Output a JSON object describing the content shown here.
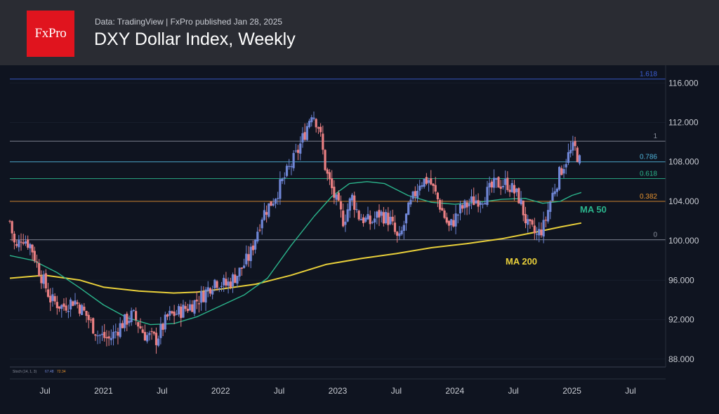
{
  "header": {
    "logo_text": "FxPro",
    "source_line": "Data: TradingView  |  FxPro published Jan 28, 2025",
    "title": "DXY Dollar Index, Weekly"
  },
  "colors": {
    "up": "#6f86d6",
    "down": "#e97f82",
    "ma50": "#2bb58c",
    "ma200": "#e8cf3a",
    "fib_1618": "#3d5fd6",
    "fib_0786": "#4fb3d9",
    "fib_0618": "#2bb58c",
    "fib_0382": "#e8932e",
    "fib_neutral": "#8a8f9c"
  },
  "chart_data": {
    "type": "candlestick",
    "title": "DXY Dollar Index, Weekly",
    "x_ticks": [
      "Jul",
      "2021",
      "Jul",
      "2022",
      "Jul",
      "2023",
      "Jul",
      "2024",
      "Jul",
      "2025",
      "Jul"
    ],
    "x_tick_times": [
      2020.5,
      2021.0,
      2021.5,
      2022.0,
      2022.5,
      2023.0,
      2023.5,
      2024.0,
      2024.5,
      2025.0,
      2025.5
    ],
    "xlim": [
      2020.2,
      2025.8
    ],
    "y_ticks": [
      "116.000",
      "112.000",
      "108.000",
      "104.000",
      "100.000",
      "96.000",
      "92.000",
      "88.000"
    ],
    "y_tick_values": [
      116,
      112,
      108,
      104,
      100,
      96,
      92,
      88
    ],
    "ylim": [
      87.2,
      117.8
    ],
    "fib_levels": [
      {
        "label": "1.618",
        "value": 116.4,
        "color_key": "fib_1618"
      },
      {
        "label": "1",
        "value": 110.1,
        "color_key": "fib_neutral"
      },
      {
        "label": "0.786",
        "value": 108.0,
        "color_key": "fib_0786"
      },
      {
        "label": "0.618",
        "value": 106.3,
        "color_key": "fib_0618"
      },
      {
        "label": "0.382",
        "value": 104.0,
        "color_key": "fib_0382"
      },
      {
        "label": "0",
        "value": 100.1,
        "color_key": "fib_neutral"
      }
    ],
    "annotations": [
      {
        "text": "MA 50",
        "color_key": "ma50"
      },
      {
        "text": "MA 200",
        "color_key": "ma200"
      }
    ],
    "ohlc_anchors": [
      [
        2020.2,
        102.0
      ],
      [
        2020.25,
        99.0
      ],
      [
        2020.3,
        100.5
      ],
      [
        2020.38,
        99.5
      ],
      [
        2020.45,
        97.0
      ],
      [
        2020.55,
        94.0
      ],
      [
        2020.65,
        93.3
      ],
      [
        2020.75,
        94.0
      ],
      [
        2020.85,
        92.5
      ],
      [
        2020.95,
        90.5
      ],
      [
        2021.05,
        90.0
      ],
      [
        2021.15,
        91.5
      ],
      [
        2021.25,
        92.5
      ],
      [
        2021.35,
        90.5
      ],
      [
        2021.45,
        90.0
      ],
      [
        2021.55,
        92.3
      ],
      [
        2021.65,
        92.8
      ],
      [
        2021.75,
        93.5
      ],
      [
        2021.85,
        94.5
      ],
      [
        2021.95,
        96.0
      ],
      [
        2022.05,
        95.5
      ],
      [
        2022.15,
        96.7
      ],
      [
        2022.25,
        98.5
      ],
      [
        2022.35,
        102.5
      ],
      [
        2022.45,
        104.2
      ],
      [
        2022.55,
        106.5
      ],
      [
        2022.65,
        108.8
      ],
      [
        2022.72,
        111.0
      ],
      [
        2022.78,
        113.2
      ],
      [
        2022.84,
        111.5
      ],
      [
        2022.9,
        107.0
      ],
      [
        2022.97,
        104.5
      ],
      [
        2023.05,
        102.0
      ],
      [
        2023.12,
        104.5
      ],
      [
        2023.18,
        102.5
      ],
      [
        2023.28,
        101.8
      ],
      [
        2023.36,
        102.8
      ],
      [
        2023.45,
        102.0
      ],
      [
        2023.52,
        99.8
      ],
      [
        2023.6,
        103.0
      ],
      [
        2023.7,
        106.0
      ],
      [
        2023.78,
        106.2
      ],
      [
        2023.86,
        104.0
      ],
      [
        2023.95,
        101.3
      ],
      [
        2024.05,
        103.2
      ],
      [
        2024.15,
        104.0
      ],
      [
        2024.25,
        104.5
      ],
      [
        2024.35,
        105.8
      ],
      [
        2024.45,
        105.8
      ],
      [
        2024.55,
        104.3
      ],
      [
        2024.62,
        101.5
      ],
      [
        2024.7,
        100.5
      ],
      [
        2024.76,
        101.5
      ],
      [
        2024.82,
        104.2
      ],
      [
        2024.9,
        107.0
      ],
      [
        2024.96,
        108.5
      ],
      [
        2025.02,
        109.5
      ],
      [
        2025.08,
        107.6
      ]
    ],
    "ma50_points": [
      [
        2020.2,
        98.5
      ],
      [
        2020.4,
        98.0
      ],
      [
        2020.6,
        96.8
      ],
      [
        2020.8,
        95.2
      ],
      [
        2021.0,
        93.5
      ],
      [
        2021.2,
        92.2
      ],
      [
        2021.4,
        91.5
      ],
      [
        2021.6,
        91.6
      ],
      [
        2021.8,
        92.3
      ],
      [
        2022.0,
        93.4
      ],
      [
        2022.2,
        94.5
      ],
      [
        2022.4,
        96.2
      ],
      [
        2022.6,
        99.5
      ],
      [
        2022.8,
        102.5
      ],
      [
        2022.95,
        104.5
      ],
      [
        2023.1,
        105.8
      ],
      [
        2023.25,
        106.0
      ],
      [
        2023.4,
        105.8
      ],
      [
        2023.6,
        104.6
      ],
      [
        2023.8,
        103.9
      ],
      [
        2024.0,
        103.7
      ],
      [
        2024.2,
        103.9
      ],
      [
        2024.4,
        104.2
      ],
      [
        2024.6,
        104.3
      ],
      [
        2024.75,
        103.8
      ],
      [
        2024.9,
        104.0
      ],
      [
        2025.0,
        104.6
      ],
      [
        2025.08,
        104.9
      ]
    ],
    "ma200_points": [
      [
        2020.2,
        96.2
      ],
      [
        2020.5,
        96.5
      ],
      [
        2020.8,
        96.0
      ],
      [
        2021.0,
        95.3
      ],
      [
        2021.3,
        94.9
      ],
      [
        2021.6,
        94.7
      ],
      [
        2021.8,
        94.8
      ],
      [
        2022.0,
        95.1
      ],
      [
        2022.3,
        95.6
      ],
      [
        2022.6,
        96.5
      ],
      [
        2022.9,
        97.6
      ],
      [
        2023.2,
        98.2
      ],
      [
        2023.5,
        98.7
      ],
      [
        2023.8,
        99.3
      ],
      [
        2024.1,
        99.7
      ],
      [
        2024.4,
        100.2
      ],
      [
        2024.7,
        100.9
      ],
      [
        2024.9,
        101.4
      ],
      [
        2025.08,
        101.8
      ]
    ],
    "stoch_label": "Stoch (14, 1, 3)",
    "stoch_values": [
      "67.48",
      "72.34"
    ]
  }
}
